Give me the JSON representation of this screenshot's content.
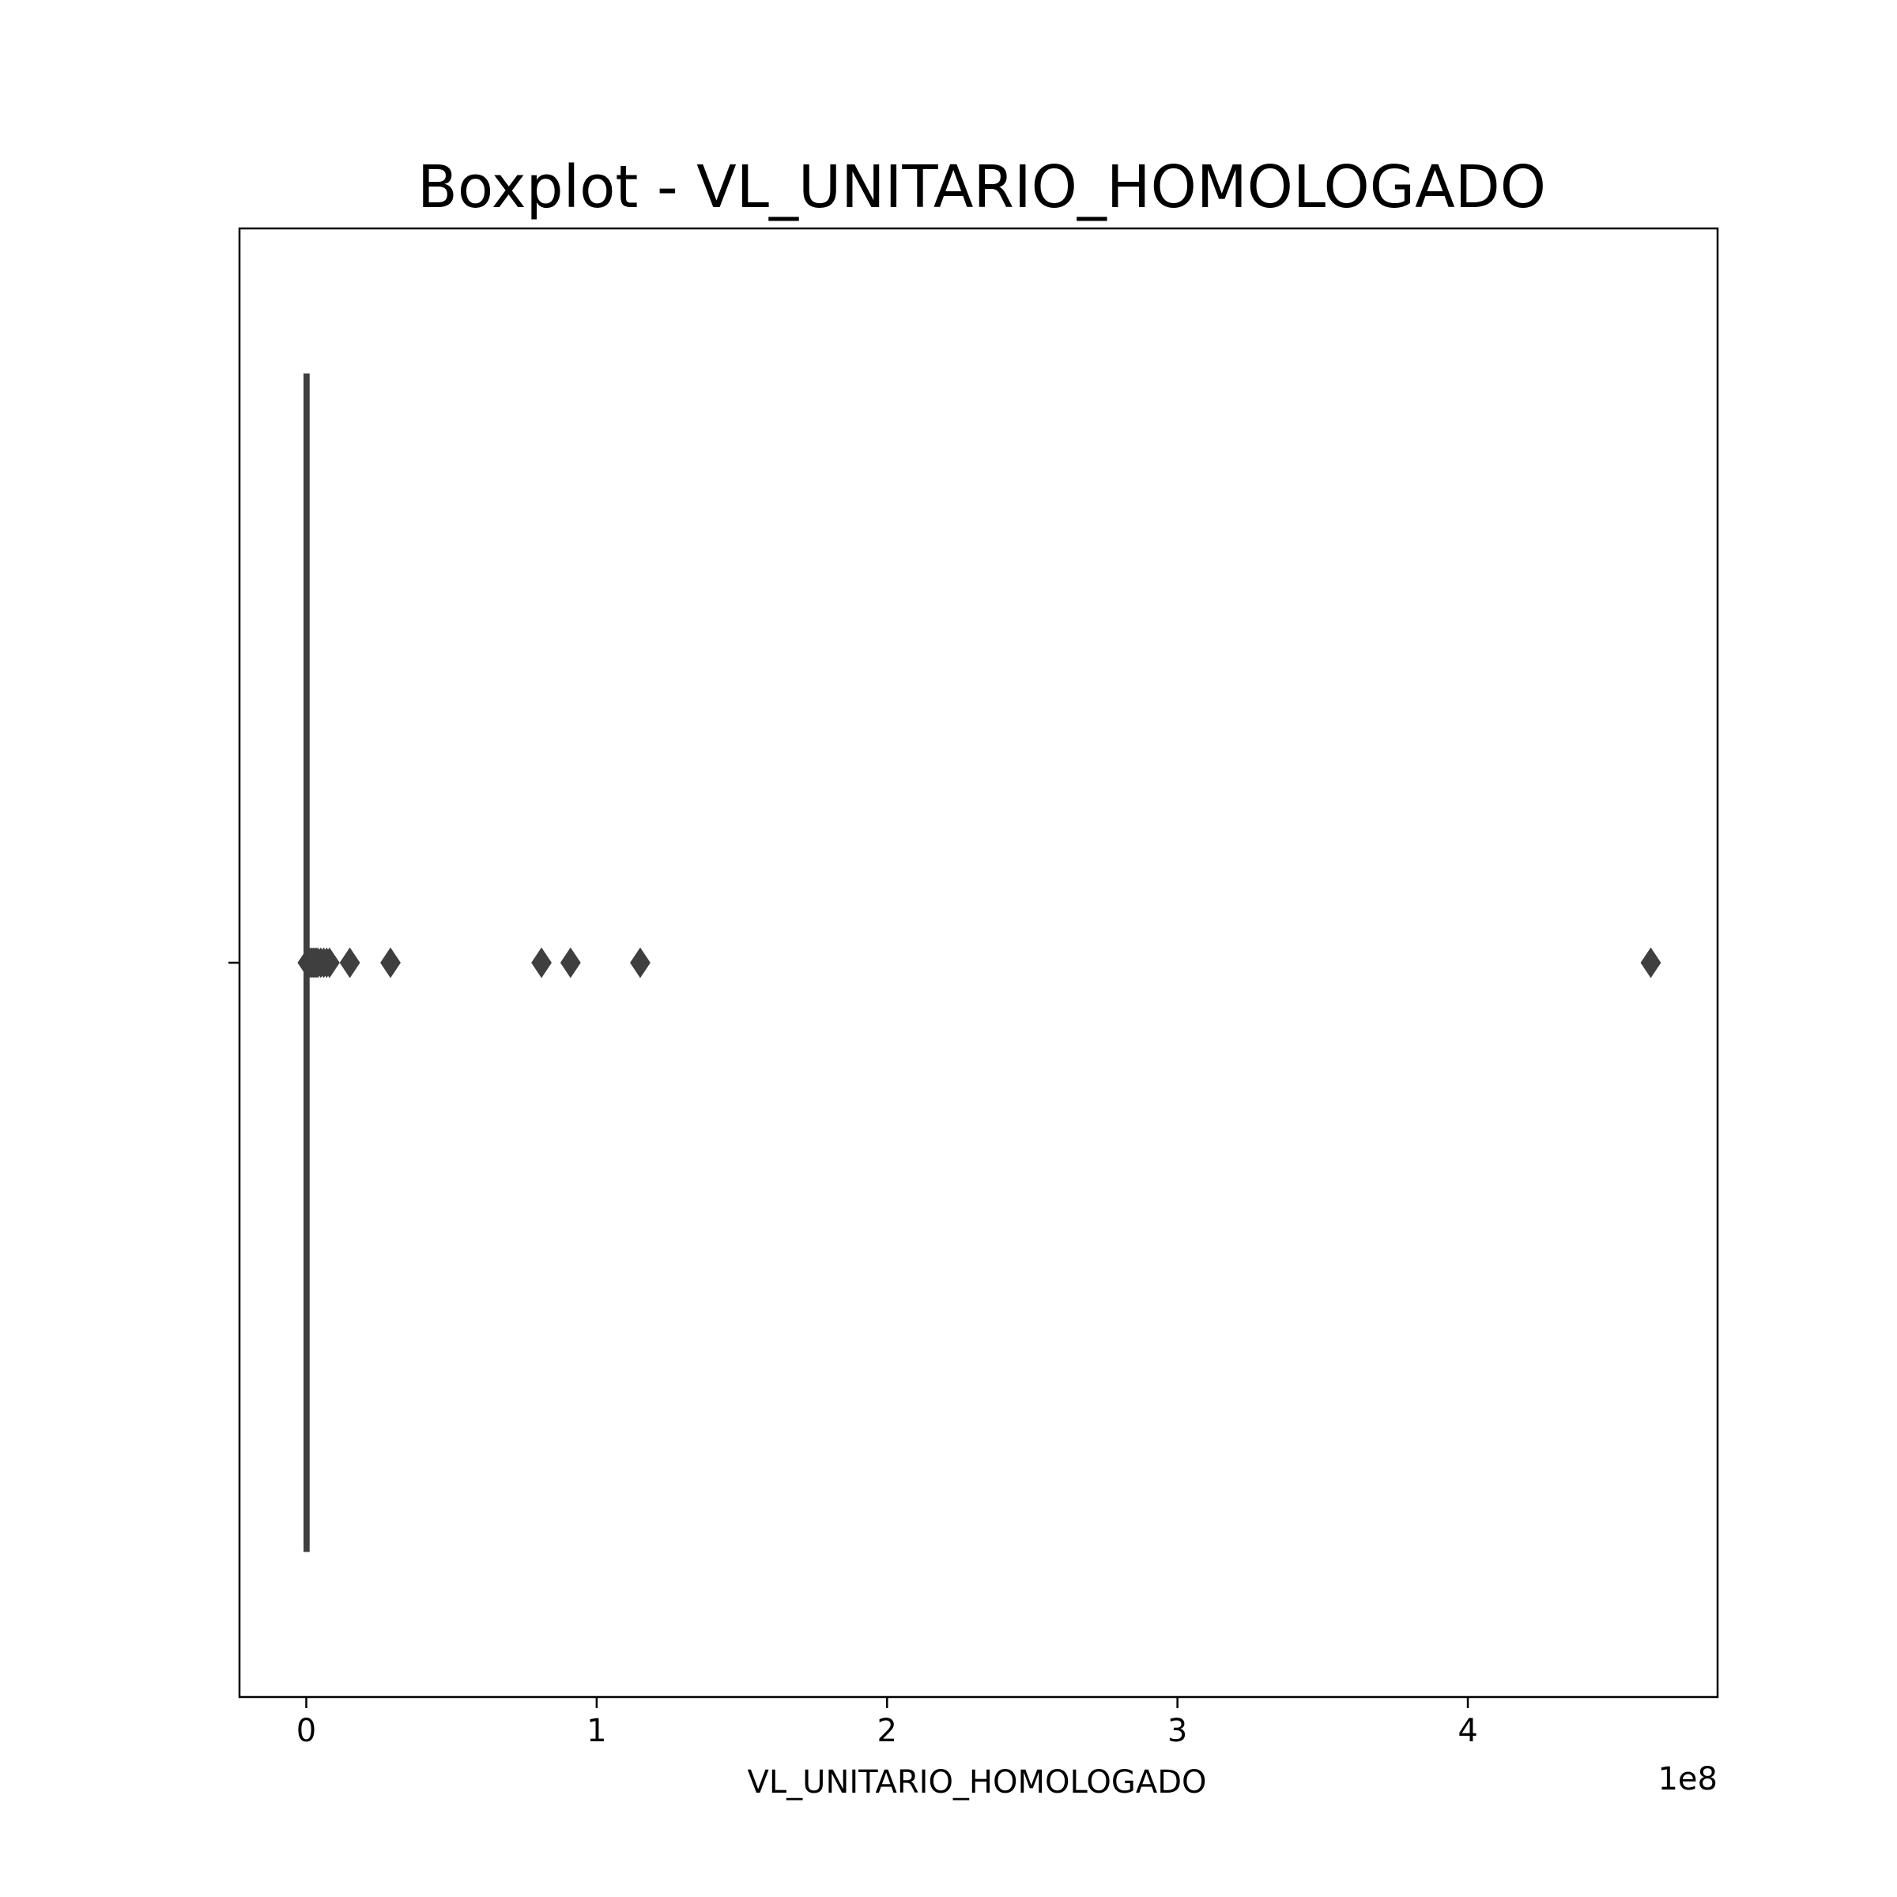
{
  "chart_data": {
    "type": "boxplot",
    "title": "Boxplot - VL_UNITARIO_HOMOLOGADO",
    "xlabel": "VL_UNITARIO_HOMOLOGADO",
    "ylabel": "",
    "x_offset_label": "1e8",
    "x_ticks": [
      0,
      1,
      2,
      3,
      4
    ],
    "x_tick_labels": [
      "0",
      "1",
      "2",
      "3",
      "4"
    ],
    "xlim": [
      -0.23,
      4.86
    ],
    "grid": false,
    "box": {
      "min": 0,
      "q1": 0,
      "median": 0,
      "q3": 0.002,
      "max": 0.005
    },
    "outliers": [
      0.005,
      0.01,
      0.015,
      0.02,
      0.025,
      0.03,
      0.035,
      0.04,
      0.05,
      0.06,
      0.07,
      0.08,
      0.15,
      0.29,
      0.81,
      0.91,
      1.15,
      4.63
    ],
    "colors": {
      "box": "#3f3f3f",
      "axes": "#000000"
    }
  }
}
